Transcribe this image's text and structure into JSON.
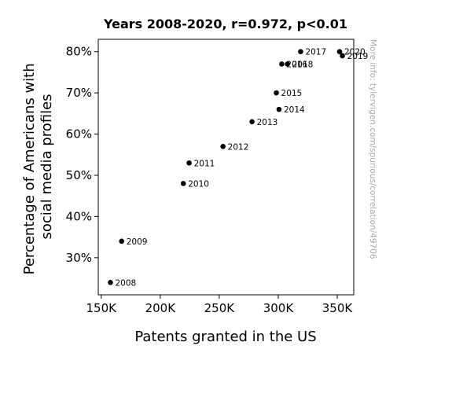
{
  "chart_data": {
    "type": "scatter",
    "title": "Years 2008-2020, r=0.972, p<0.01",
    "xlabel": "Patents granted in the US",
    "ylabel_lines": [
      "Percentage of Americans with",
      "social media profiles"
    ],
    "watermark": "More info: tylervigen.com/spurious/correlation/49706",
    "xlim": [
      147500,
      364000
    ],
    "ylim": [
      21,
      83
    ],
    "x_ticks": [
      {
        "value": 150000,
        "label": "150K"
      },
      {
        "value": 200000,
        "label": "200K"
      },
      {
        "value": 250000,
        "label": "250K"
      },
      {
        "value": 300000,
        "label": "300K"
      },
      {
        "value": 350000,
        "label": "350K"
      }
    ],
    "y_ticks": [
      {
        "value": 30,
        "label": "30%"
      },
      {
        "value": 40,
        "label": "40%"
      },
      {
        "value": 50,
        "label": "50%"
      },
      {
        "value": 60,
        "label": "60%"
      },
      {
        "value": 70,
        "label": "70%"
      },
      {
        "value": 80,
        "label": "80%"
      }
    ],
    "points": [
      {
        "label": "2008",
        "x": 157800,
        "y": 24
      },
      {
        "label": "2009",
        "x": 167300,
        "y": 34
      },
      {
        "label": "2010",
        "x": 219600,
        "y": 48
      },
      {
        "label": "2011",
        "x": 224500,
        "y": 53
      },
      {
        "label": "2012",
        "x": 253200,
        "y": 57
      },
      {
        "label": "2013",
        "x": 277800,
        "y": 63
      },
      {
        "label": "2014",
        "x": 300700,
        "y": 66
      },
      {
        "label": "2015",
        "x": 298400,
        "y": 70
      },
      {
        "label": "2016",
        "x": 303000,
        "y": 77
      },
      {
        "label": "2017",
        "x": 319000,
        "y": 80
      },
      {
        "label": "2018",
        "x": 307800,
        "y": 77
      },
      {
        "label": "2019",
        "x": 354400,
        "y": 79
      },
      {
        "label": "2020",
        "x": 352000,
        "y": 80
      }
    ],
    "grid": false,
    "legend": "none"
  }
}
